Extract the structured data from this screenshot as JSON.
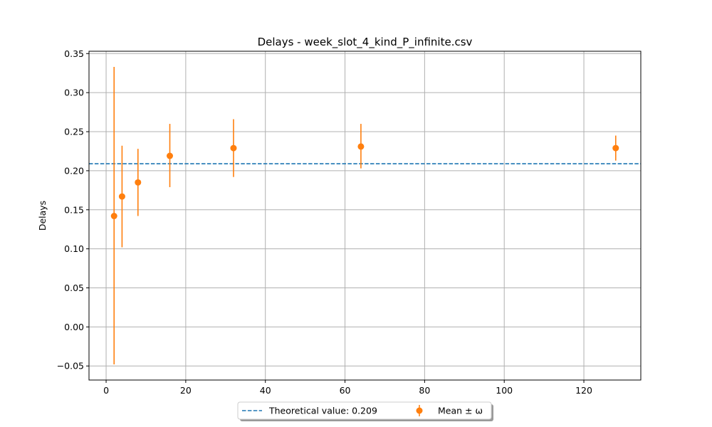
{
  "chart_data": {
    "type": "scatter",
    "title": "Delays - week_slot_4_kind_P_infinite.csv",
    "xlabel": "",
    "ylabel": "Delays",
    "xlim": [
      -4.3,
      134.3
    ],
    "ylim": [
      -0.068,
      0.353
    ],
    "x_ticks": [
      0,
      20,
      40,
      60,
      80,
      100,
      120
    ],
    "y_ticks": [
      -0.05,
      0.0,
      0.05,
      0.1,
      0.15,
      0.2,
      0.25,
      0.3,
      0.35
    ],
    "y_tick_labels": [
      "−0.05",
      "0.00",
      "0.05",
      "0.10",
      "0.15",
      "0.20",
      "0.25",
      "0.30",
      "0.35"
    ],
    "grid": true,
    "legend_position": "bottom-center",
    "reference_line": {
      "label": "Theoretical value: 0.209",
      "y": 0.209,
      "color": "#1f77b4",
      "style": "dashed"
    },
    "series": [
      {
        "name": "Mean ± ω",
        "color": "#ff7f0e",
        "points": [
          {
            "x": 2,
            "y": 0.142,
            "low": -0.048,
            "high": 0.333
          },
          {
            "x": 4,
            "y": 0.167,
            "low": 0.102,
            "high": 0.232
          },
          {
            "x": 8,
            "y": 0.185,
            "low": 0.142,
            "high": 0.228
          },
          {
            "x": 16,
            "y": 0.219,
            "low": 0.179,
            "high": 0.26
          },
          {
            "x": 32,
            "y": 0.229,
            "low": 0.192,
            "high": 0.266
          },
          {
            "x": 64,
            "y": 0.231,
            "low": 0.203,
            "high": 0.26
          },
          {
            "x": 128,
            "y": 0.229,
            "low": 0.213,
            "high": 0.245
          }
        ]
      }
    ]
  }
}
